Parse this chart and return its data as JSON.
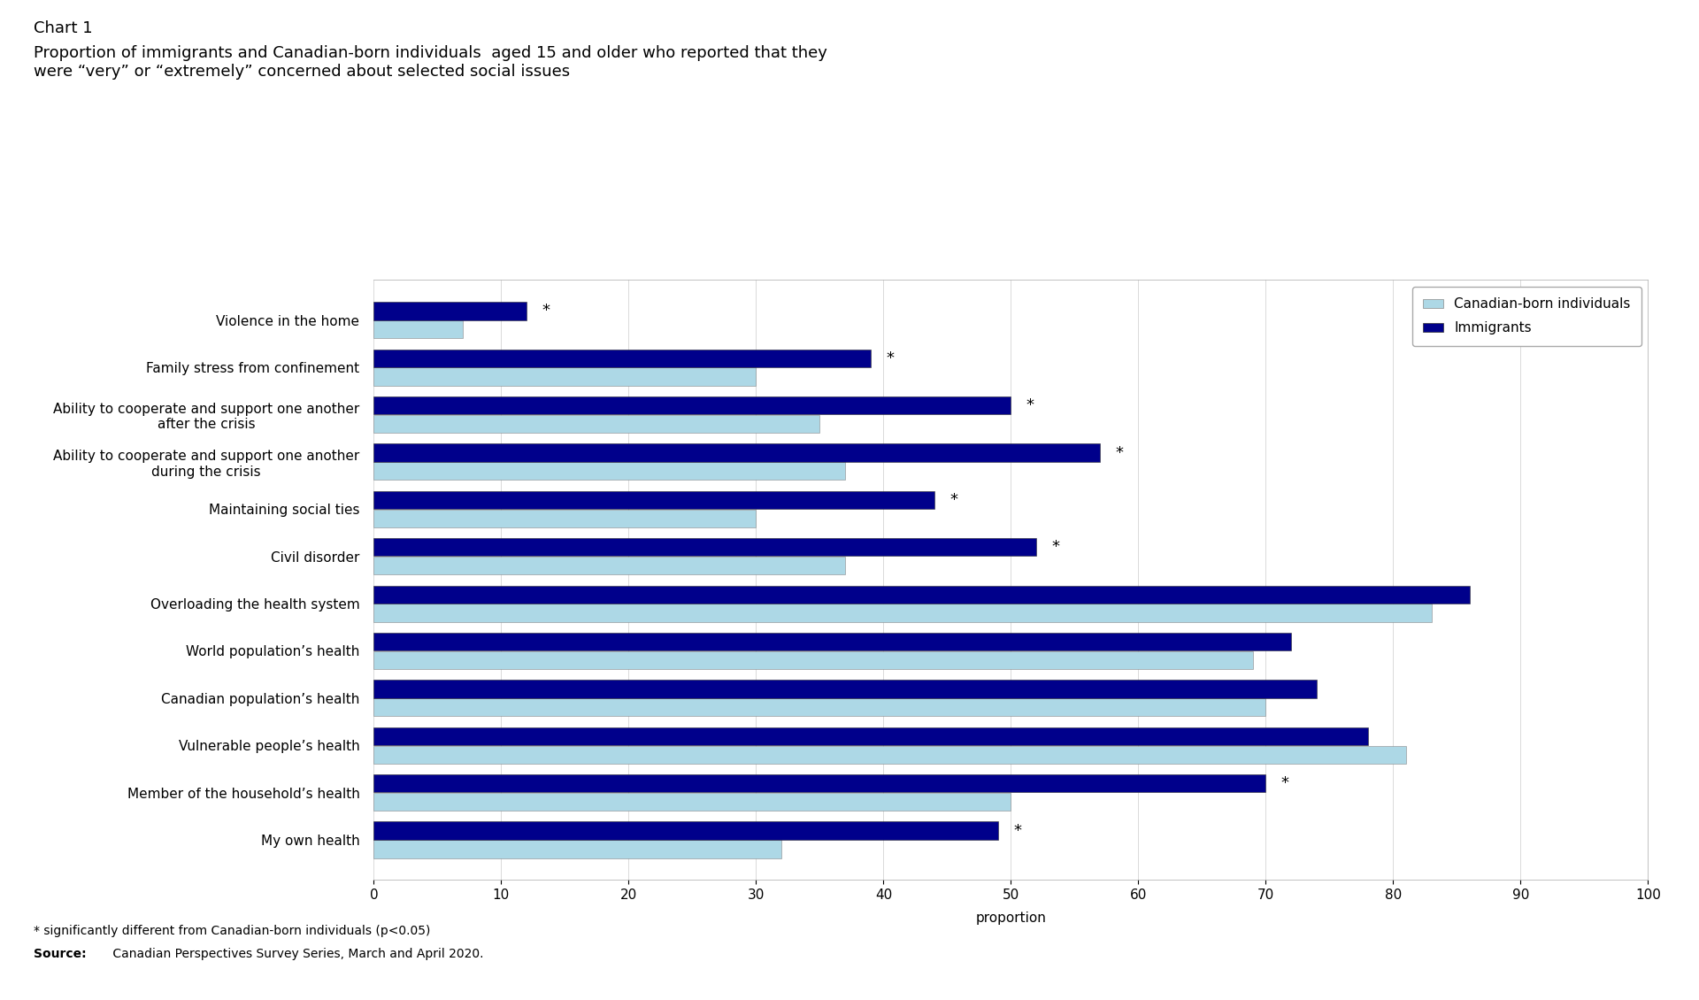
{
  "title_line1": "Chart 1",
  "title_line2": "Proportion of immigrants and Canadian-born individuals  aged 15 and older who reported that they\nwere “very” or “extremely” concerned about selected social issues",
  "categories": [
    "Violence in the home",
    "Family stress from confinement",
    "Ability to cooperate and support one another\nafter the crisis",
    "Ability to cooperate and support one another\nduring the crisis",
    "Maintaining social ties",
    "Civil disorder",
    "Overloading the health system",
    "World population’s health",
    "Canadian population’s health",
    "Vulnerable people’s health",
    "Member of the household’s health",
    "My own health"
  ],
  "canadian_born": [
    7,
    30,
    35,
    37,
    30,
    37,
    83,
    69,
    70,
    81,
    50,
    32
  ],
  "immigrants": [
    12,
    39,
    50,
    57,
    44,
    52,
    86,
    72,
    74,
    78,
    70,
    49
  ],
  "immigrant_sig": [
    true,
    true,
    true,
    true,
    true,
    true,
    false,
    false,
    false,
    false,
    true,
    true
  ],
  "color_canadian": "#add8e6",
  "color_immigrant": "#00008b",
  "xlim": [
    0,
    100
  ],
  "xticks": [
    0,
    10,
    20,
    30,
    40,
    50,
    60,
    70,
    80,
    90,
    100
  ],
  "xlabel": "proportion",
  "legend_labels": [
    "Canadian-born individuals",
    "Immigrants"
  ],
  "footnote1": "* significantly different from Canadian-born individuals (p<0.05)",
  "footnote2_bold": "Source:",
  "footnote2_rest": " Canadian Perspectives Survey Series, March and April 2020.",
  "bg_color": "#ffffff",
  "plot_bg_color": "#ffffff"
}
